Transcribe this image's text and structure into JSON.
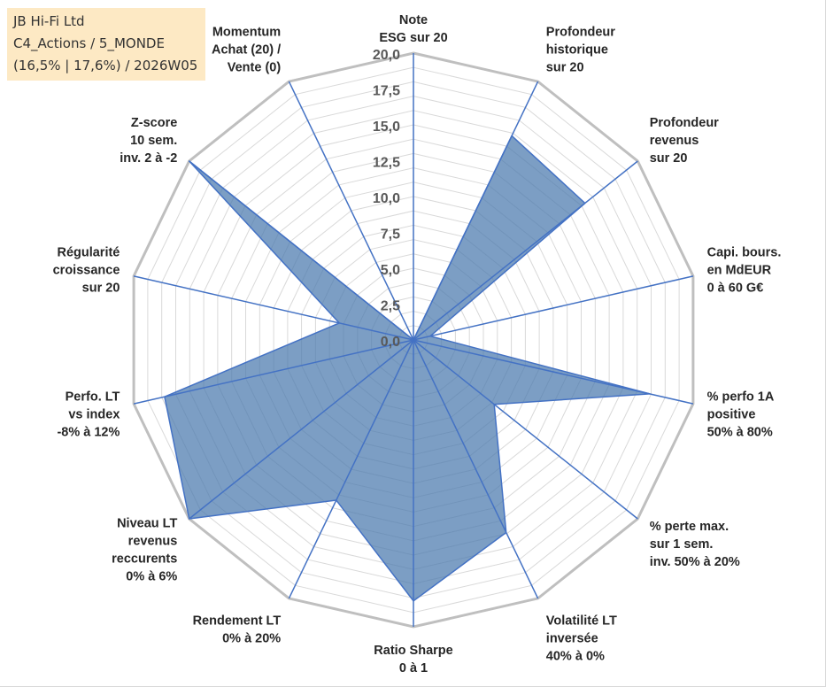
{
  "header": {
    "company": "JB Hi-Fi Ltd",
    "classification": "C4_Actions / 5_MONDE",
    "period": "(16,5% | 17,6%) / 2026W05"
  },
  "colors": {
    "fill": "#4a78ad",
    "stroke": "#4472c4",
    "ring": "#bfbfbf",
    "grid": "#d9d9d9",
    "header_bg": "#fde9c4"
  },
  "chart_data": {
    "type": "radar",
    "rmin": 0,
    "rmax": 20,
    "ticks": [
      "0,0",
      "2,5",
      "5,0",
      "7,5",
      "10,0",
      "12,5",
      "15,0",
      "17,5",
      "20,0"
    ],
    "categories": [
      [
        "Note",
        "ESG sur 20"
      ],
      [
        "Profondeur",
        "historique",
        "sur 20"
      ],
      [
        "Profondeur",
        "revenus",
        "sur 20"
      ],
      [
        "Capi. bours.",
        "en MdEUR",
        "0 à 60 G€"
      ],
      [
        "% perfo 1A",
        "positive",
        "50% à 80%"
      ],
      [
        "% perte max.",
        "sur 1 sem.",
        "inv. 50% à 20%"
      ],
      [
        "Volatilité LT",
        "inversée",
        "40% à 0%"
      ],
      [
        "Ratio Sharpe",
        "0 à 1"
      ],
      [
        "Rendement LT",
        "0% à 20%"
      ],
      [
        "Niveau LT",
        "revenus",
        "reccurents",
        "0% à 6%"
      ],
      [
        "Perfo. LT",
        "vs index",
        "-8% à 12%"
      ],
      [
        "Régularité",
        "croissance",
        "sur 20"
      ],
      [
        "Z-score",
        "10 sem.",
        "inv. 2 à -2"
      ],
      [
        "Momentum",
        "Achat (20) /",
        "Vente (0)"
      ]
    ],
    "series": [
      {
        "name": "JB Hi-Fi Ltd",
        "values": [
          0,
          15.8,
          15.3,
          1.2,
          16.9,
          7.2,
          14.9,
          18.2,
          12.4,
          20.0,
          17.8,
          5.3,
          20.0,
          0
        ]
      }
    ]
  }
}
